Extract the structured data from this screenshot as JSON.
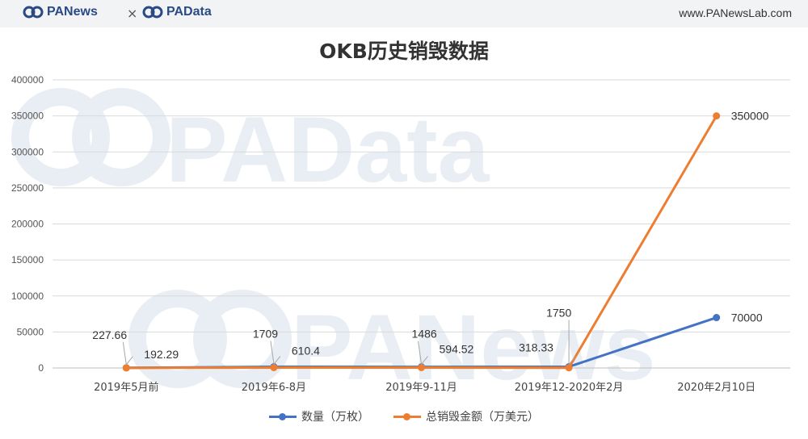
{
  "header": {
    "brand_left": "PANews",
    "separator": "×",
    "brand_right": "PAData",
    "site": "www.PANewsLab.com"
  },
  "watermark": {
    "upper": "PAData",
    "lower": "PANews"
  },
  "colors": {
    "series_quantity": "#4472c4",
    "series_amount": "#ed7d31",
    "brand": "#2a4a86"
  },
  "chart_data": {
    "type": "line",
    "title": "OKB历史销毁数据",
    "categories": [
      "2019年5月前",
      "2019年6-8月",
      "2019年9-11月",
      "2019年12-2020年2月",
      "2020年2月10日"
    ],
    "yticks": [
      "0",
      "50000",
      "100000",
      "150000",
      "200000",
      "250000",
      "300000",
      "350000",
      "400000"
    ],
    "ylim": [
      0,
      400000
    ],
    "grid": true,
    "legend_position": "bottom",
    "series": [
      {
        "name": "数量（万枚）",
        "color": "#4472c4",
        "values": [
          227.66,
          1709,
          1486,
          1750,
          70000
        ],
        "labels": [
          "227.66",
          "1709",
          "1486",
          "1750",
          "70000"
        ]
      },
      {
        "name": "总销毁金额（万美元）",
        "color": "#ed7d31",
        "values": [
          192.29,
          610.4,
          594.52,
          318.33,
          350000
        ],
        "labels": [
          "192.29",
          "610.4",
          "594.52",
          "318.33",
          "350000"
        ]
      }
    ]
  }
}
